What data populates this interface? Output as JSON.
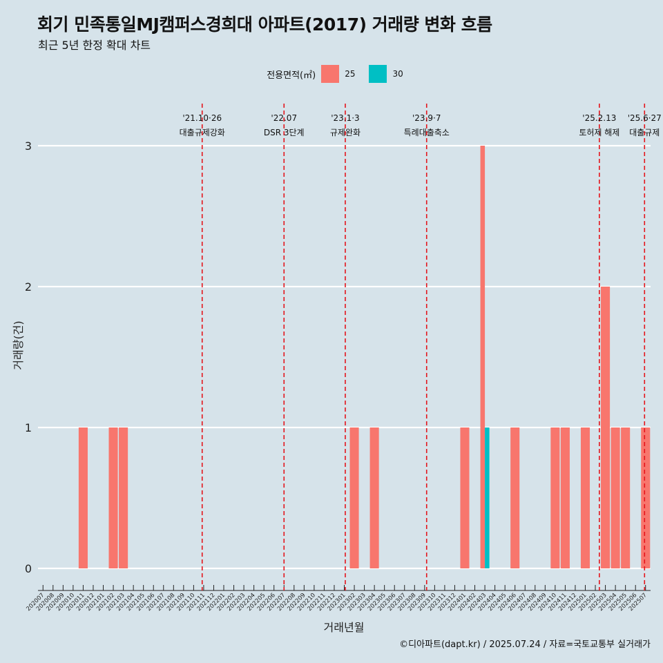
{
  "header": {
    "title": "회기 민족통일MJ캠퍼스경희대 아파트(2017) 거래량 변화 흐름",
    "subtitle": "최근 5년 한정 확대 차트"
  },
  "legend": {
    "title": "전용면적(㎡)",
    "items": [
      {
        "label": "25",
        "color": "#f8766d"
      },
      {
        "label": "30",
        "color": "#00bfc4"
      }
    ]
  },
  "caption": "©디아파트(dapt.kr) / 2025.07.24 / 자료=국토교통부 실거래가",
  "chart_data": {
    "type": "bar",
    "xlabel": "거래년월",
    "ylabel": "거래량(건)",
    "ylim": [
      0,
      3
    ],
    "yticks": [
      0,
      1,
      2,
      3
    ],
    "grid": true,
    "legend_position": "top",
    "categories": [
      "202007",
      "202008",
      "202009",
      "202010",
      "202011",
      "202012",
      "202101",
      "202102",
      "202103",
      "202104",
      "202105",
      "202106",
      "202107",
      "202108",
      "202109",
      "202110",
      "202111",
      "202112",
      "202201",
      "202202",
      "202203",
      "202204",
      "202205",
      "202206",
      "202207",
      "202208",
      "202209",
      "202210",
      "202211",
      "202212",
      "202301",
      "202302",
      "202303",
      "202304",
      "202305",
      "202306",
      "202307",
      "202308",
      "202309",
      "202310",
      "202311",
      "202312",
      "202401",
      "202402",
      "202403",
      "202404",
      "202405",
      "202406",
      "202407",
      "202408",
      "202409",
      "202410",
      "202411",
      "202412",
      "202501",
      "202502",
      "202503",
      "202504",
      "202505",
      "202506",
      "202507"
    ],
    "series": [
      {
        "name": "25",
        "color": "#f8766d",
        "values": {
          "202011": 1,
          "202102": 1,
          "202103": 1,
          "202302": 1,
          "202304": 1,
          "202401": 1,
          "202403": 3,
          "202406": 1,
          "202410": 1,
          "202411": 1,
          "202501": 1,
          "202503": 2,
          "202504": 1,
          "202505": 1,
          "202507": 1
        }
      },
      {
        "name": "30",
        "color": "#00bfc4",
        "values": {
          "202403": 1
        }
      }
    ],
    "events": [
      {
        "date": "'21.10·26",
        "label": "대출규제강화",
        "month": "202110",
        "frac": 0.85
      },
      {
        "date": "'22.07",
        "label": "DSR 3단계",
        "month": "202207",
        "frac": 0.0
      },
      {
        "date": "'23.1·3",
        "label": "규제완화",
        "month": "202301",
        "frac": 0.1
      },
      {
        "date": "'23.9·7",
        "label": "특례대출축소",
        "month": "202309",
        "frac": 0.2
      },
      {
        "date": "'25.2.13",
        "label": "토허제 해제",
        "month": "202502",
        "frac": 0.4
      },
      {
        "date": "'25.6·27",
        "label": "대출규제",
        "month": "202506",
        "frac": 0.9
      }
    ]
  }
}
